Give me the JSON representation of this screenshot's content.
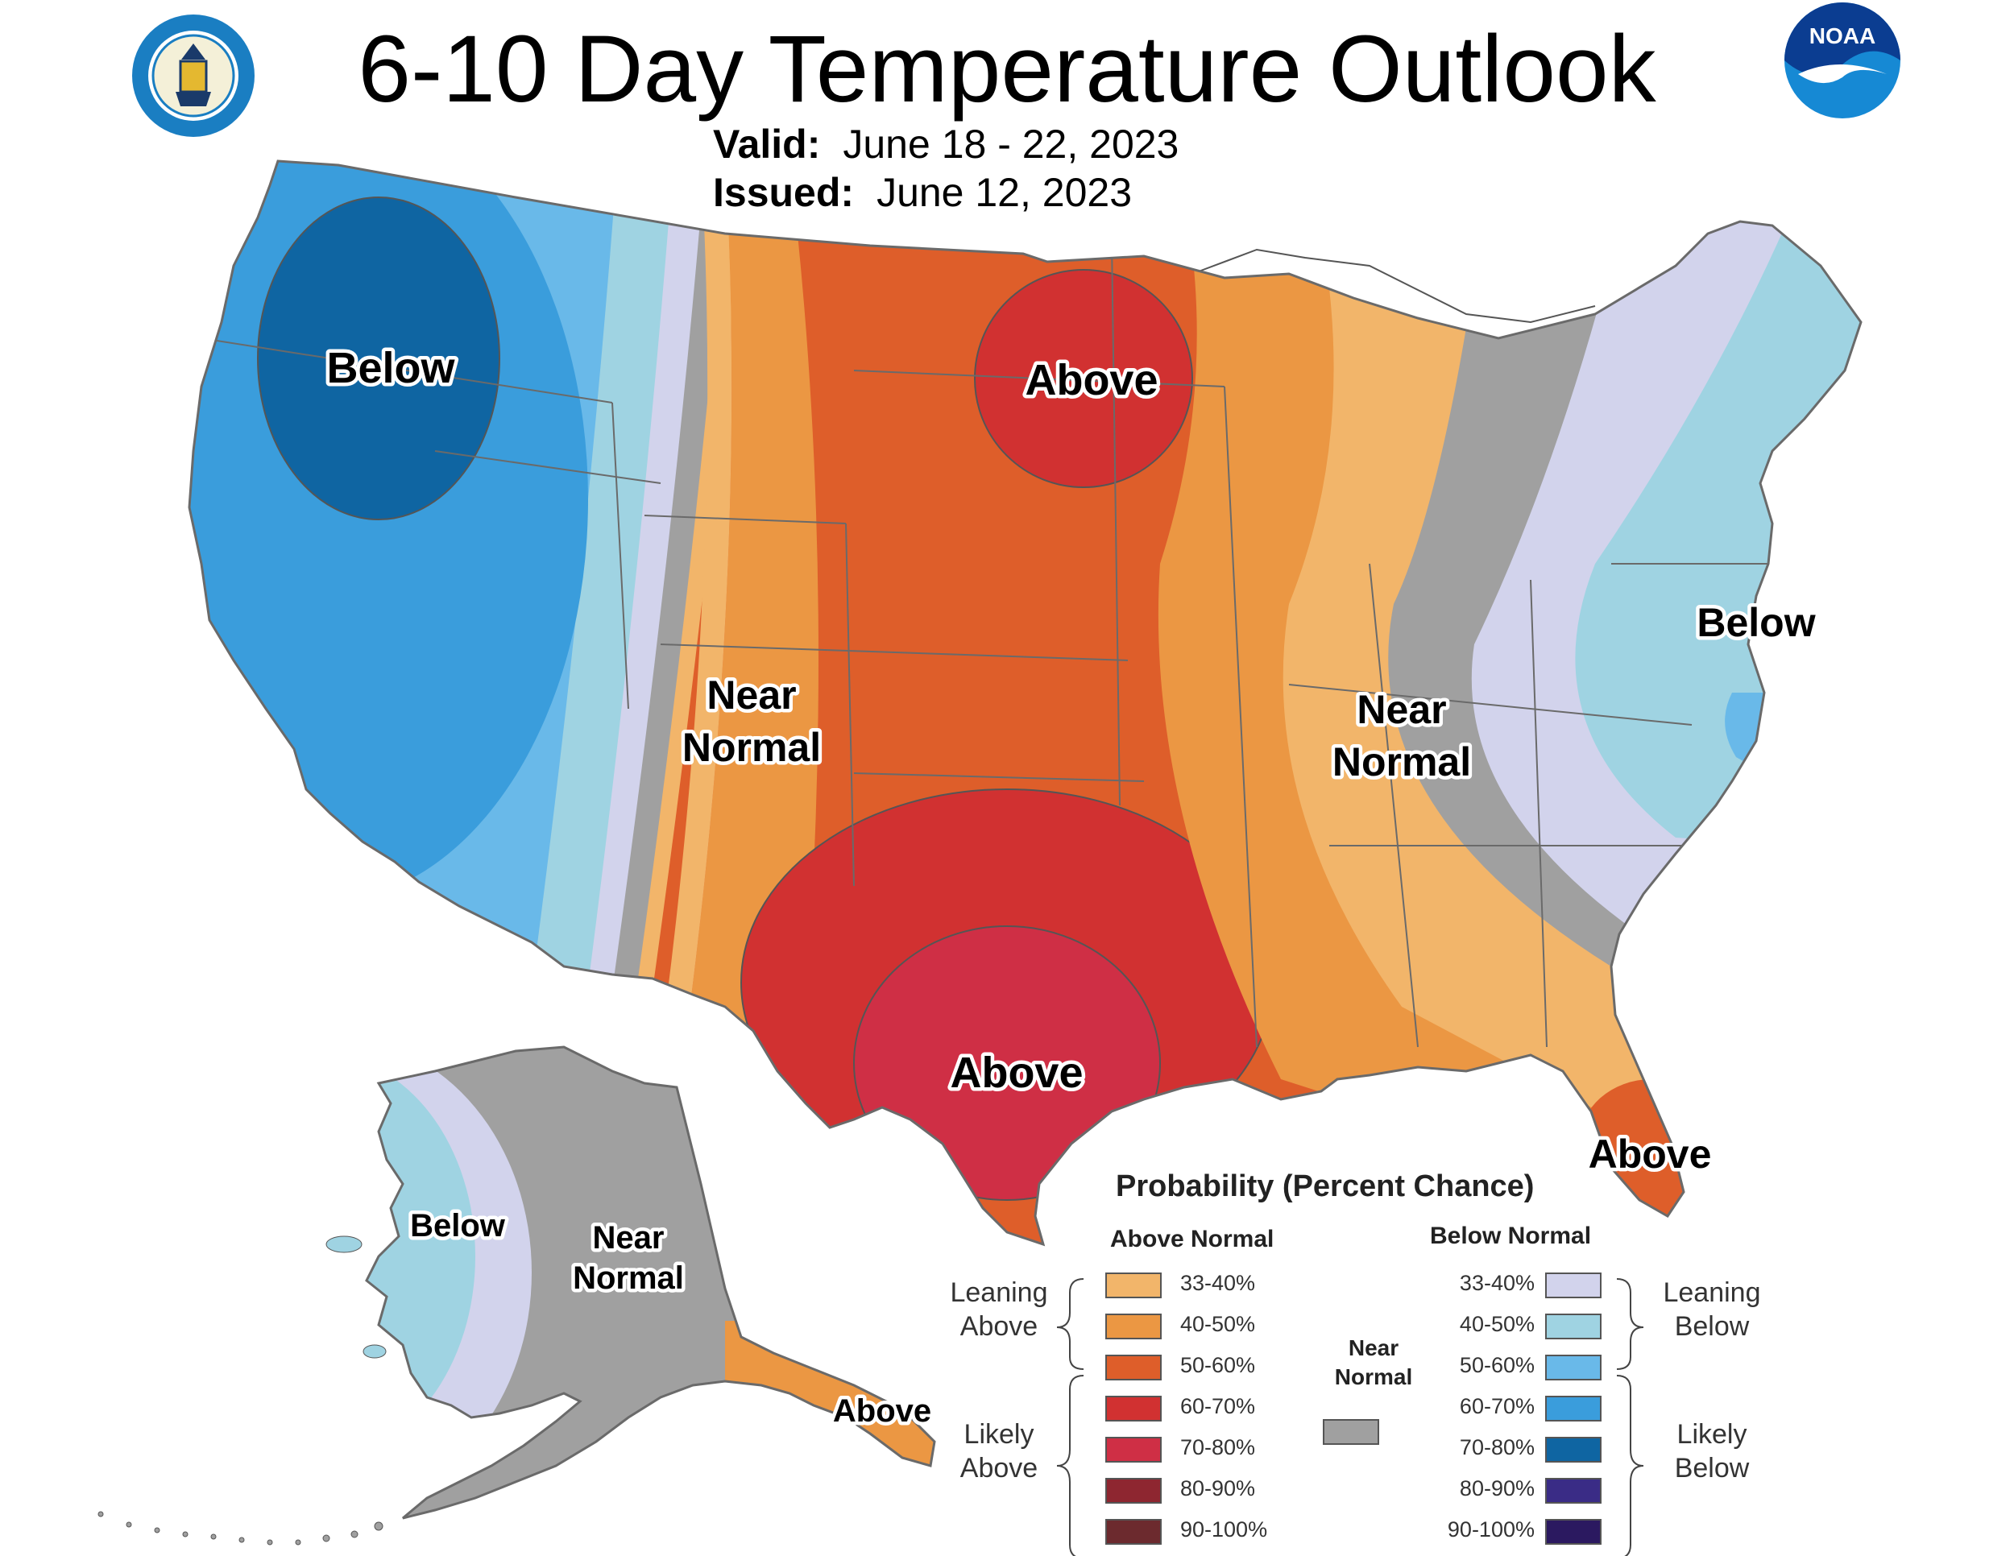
{
  "header": {
    "title": "6-10 Day Temperature Outlook",
    "valid_label": "Valid:",
    "valid_value": "June 18 - 22, 2023",
    "issued_label": "Issued:",
    "issued_value": "June 12, 2023"
  },
  "logos": {
    "left": "department-of-commerce-seal-icon",
    "right": "noaa-logo-icon",
    "right_text": "NOAA"
  },
  "map_labels": {
    "west_below": "Below",
    "north_above": "Above",
    "plains_near_normal_1": "Near",
    "plains_near_normal_2": "Normal",
    "east_near_normal_1": "Near",
    "east_near_normal_2": "Normal",
    "east_below": "Below",
    "texas_above": "Above",
    "florida_above": "Above",
    "alaska_below": "Below",
    "alaska_near_normal_1": "Near",
    "alaska_near_normal_2": "Normal",
    "alaska_above": "Above"
  },
  "legend": {
    "title": "Probability (Percent Chance)",
    "above_header": "Above Normal",
    "below_header": "Below Normal",
    "near_header_1": "Near",
    "near_header_2": "Normal",
    "leaning_above_1": "Leaning",
    "leaning_above_2": "Above",
    "likely_above_1": "Likely",
    "likely_above_2": "Above",
    "leaning_below_1": "Leaning",
    "leaning_below_2": "Below",
    "likely_below_1": "Likely",
    "likely_below_2": "Below",
    "above": [
      {
        "label": "33-40%",
        "color": "#F2B56A"
      },
      {
        "label": "40-50%",
        "color": "#EB9743"
      },
      {
        "label": "50-60%",
        "color": "#DE5E2A"
      },
      {
        "label": "60-70%",
        "color": "#D13131"
      },
      {
        "label": "70-80%",
        "color": "#CF2F45"
      },
      {
        "label": "80-90%",
        "color": "#8E2630"
      },
      {
        "label": "90-100%",
        "color": "#6C2A2E"
      }
    ],
    "below": [
      {
        "label": "33-40%",
        "color": "#D2D3EC"
      },
      {
        "label": "40-50%",
        "color": "#9FD3E2"
      },
      {
        "label": "50-60%",
        "color": "#69B9E9"
      },
      {
        "label": "60-70%",
        "color": "#3A9DDC"
      },
      {
        "label": "70-80%",
        "color": "#0F65A2"
      },
      {
        "label": "80-90%",
        "color": "#3A2C86"
      },
      {
        "label": "90-100%",
        "color": "#2B1960"
      }
    ],
    "near_color": "#A0A0A0"
  }
}
